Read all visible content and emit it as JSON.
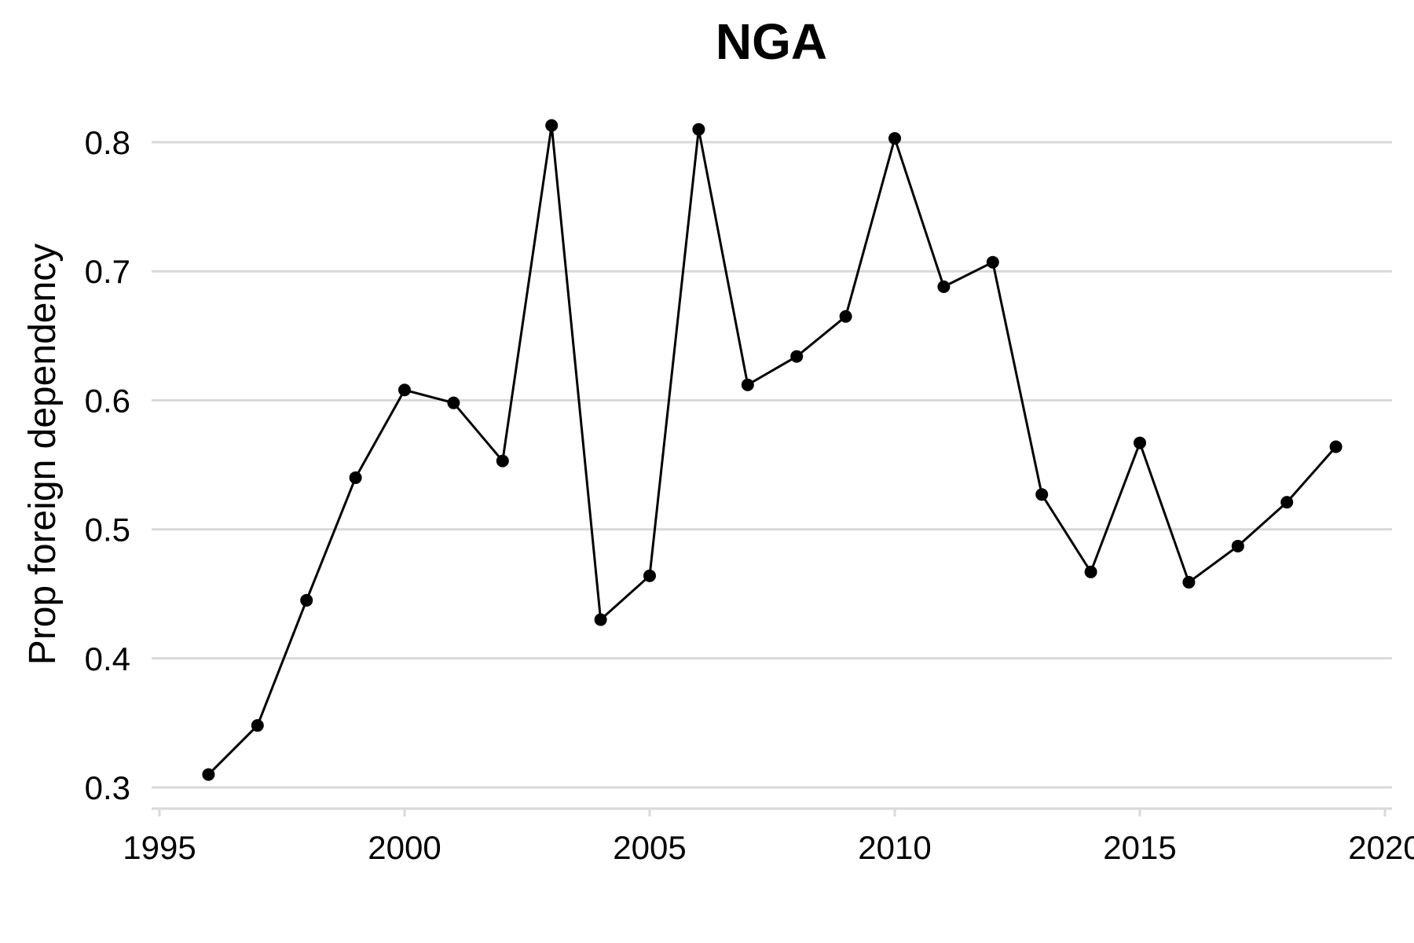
{
  "chart_data": {
    "type": "line",
    "title": "NGA",
    "xlabel": "",
    "ylabel": "Prop foreign dependency",
    "xlim": [
      1995,
      2020
    ],
    "ylim": [
      0.3,
      0.8
    ],
    "x_ticks": [
      "1995",
      "2000",
      "2005",
      "2010",
      "2015",
      "2020"
    ],
    "y_ticks": [
      "0.3",
      "0.4",
      "0.5",
      "0.6",
      "0.7",
      "0.8"
    ],
    "grid": "horizontal",
    "legend": "none",
    "colors": {
      "line": "#000000",
      "grid": "#d9d9d9"
    },
    "series": [
      {
        "x": [
          1996,
          1997,
          1998,
          1999,
          2000,
          2001,
          2002,
          2003,
          2004,
          2005,
          2006,
          2007,
          2008,
          2009,
          2010,
          2011,
          2012,
          2013,
          2014,
          2015,
          2016,
          2017,
          2018,
          2019
        ],
        "values": [
          0.31,
          0.348,
          0.445,
          0.54,
          0.608,
          0.598,
          0.553,
          0.813,
          0.43,
          0.464,
          0.81,
          0.612,
          0.634,
          0.665,
          0.803,
          0.688,
          0.707,
          0.527,
          0.467,
          0.567,
          0.459,
          0.487,
          0.521,
          0.564
        ]
      }
    ]
  }
}
